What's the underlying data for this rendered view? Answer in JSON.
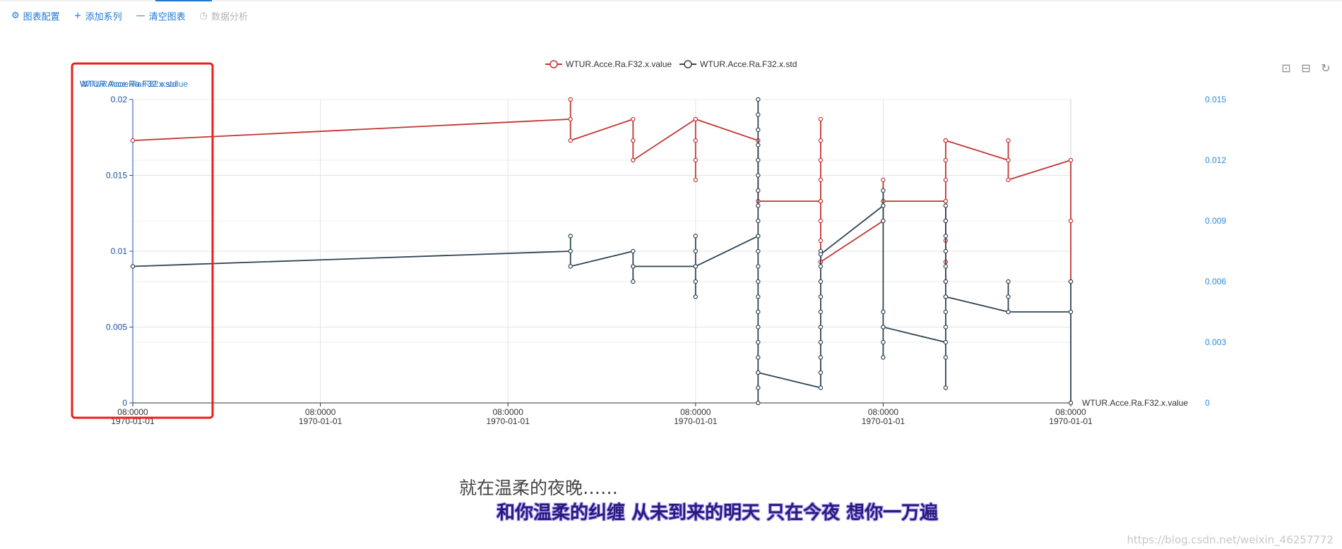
{
  "toolbar": {
    "config_label": "图表配置",
    "add_series_label": "添加系列",
    "clear_label": "清空图表",
    "analysis_label": "数据分析"
  },
  "subtitles": {
    "line1": "就在温柔的夜晚……",
    "line2": "和你温柔的纠缠  从未到来的明天  只在今夜  想你一万遍"
  },
  "watermark": "https://blog.csdn.net/weixin_46257772",
  "colors": {
    "accent": "#1f78d1",
    "value_series": "#c23531",
    "std_series": "#2f4554",
    "highlight_box": "#e8201c"
  },
  "chart_data": {
    "type": "line",
    "legend_position": "top-center",
    "grid": true,
    "x_tick_labels": [
      [
        "08:0000",
        "1970-01-01"
      ],
      [
        "08:0000",
        "1970-01-01"
      ],
      [
        "08:0000",
        "1970-01-01"
      ],
      [
        "08:0000",
        "1970-01-01"
      ],
      [
        "08:0000",
        "1970-01-01"
      ],
      [
        "08:0000",
        "1970-01-01"
      ]
    ],
    "x_range": [
      0,
      15
    ],
    "left_axis": {
      "name": "WTUR.Acce.Ra.F32.x.std",
      "overlapping_name": "WTUR.Acce.Ra.F32.x.value",
      "range": [
        0,
        0.02
      ],
      "ticks": [
        "0",
        "0.005",
        "0.01",
        "0.015",
        "0.02"
      ]
    },
    "right_axis": {
      "range": [
        0,
        0.015
      ],
      "ticks": [
        "0",
        "0.003",
        "0.006",
        "0.009",
        "0.012",
        "0.015"
      ]
    },
    "x_axis_name": "WTUR.Acce.Ra.F32.x.value",
    "series": [
      {
        "name": "WTUR.Acce.Ra.F32.x.value",
        "axis": "left",
        "points": [
          [
            0,
            0.0173
          ],
          [
            7.0,
            0.0187
          ],
          [
            7.0,
            0.02
          ],
          [
            7.0,
            0.0173
          ],
          [
            8.0,
            0.0187
          ],
          [
            8.0,
            0.0173
          ],
          [
            8.0,
            0.016
          ],
          [
            9.0,
            0.0187
          ],
          [
            9.0,
            0.0173
          ],
          [
            9.0,
            0.016
          ],
          [
            9.0,
            0.0147
          ],
          [
            9.0,
            0.0187
          ],
          [
            10.0,
            0.0173
          ],
          [
            10.0,
            0.0133
          ],
          [
            11.0,
            0.0133
          ],
          [
            11.0,
            0.0187
          ],
          [
            11.0,
            0.0173
          ],
          [
            11.0,
            0.016
          ],
          [
            11.0,
            0.0147
          ],
          [
            11.0,
            0.0133
          ],
          [
            11.0,
            0.012
          ],
          [
            11.0,
            0.0107
          ],
          [
            11.0,
            0.0093
          ],
          [
            11.0,
            0.0093
          ],
          [
            12.0,
            0.012
          ],
          [
            12.0,
            0.0133
          ],
          [
            12.0,
            0.0147
          ],
          [
            12.0,
            0.0133
          ],
          [
            13.0,
            0.0133
          ],
          [
            13.0,
            0.0173
          ],
          [
            13.0,
            0.016
          ],
          [
            13.0,
            0.0147
          ],
          [
            13.0,
            0.0133
          ],
          [
            13.0,
            0.012
          ],
          [
            13.0,
            0.0107
          ],
          [
            13.0,
            0.0093
          ],
          [
            13.0,
            0.008
          ],
          [
            13.0,
            0.0173
          ],
          [
            14.0,
            0.016
          ],
          [
            14.0,
            0.0173
          ],
          [
            14.0,
            0.0147
          ],
          [
            15.0,
            0.016
          ],
          [
            15.0,
            0.012
          ],
          [
            15.0,
            0.008
          ]
        ]
      },
      {
        "name": "WTUR.Acce.Ra.F32.x.std",
        "axis": "left",
        "points": [
          [
            0,
            0.009
          ],
          [
            7.0,
            0.01
          ],
          [
            7.0,
            0.011
          ],
          [
            7.0,
            0.009
          ],
          [
            8.0,
            0.01
          ],
          [
            8.0,
            0.009
          ],
          [
            8.0,
            0.008
          ],
          [
            8.0,
            0.009
          ],
          [
            9.0,
            0.009
          ],
          [
            9.0,
            0.011
          ],
          [
            9.0,
            0.01
          ],
          [
            9.0,
            0.008
          ],
          [
            9.0,
            0.007
          ],
          [
            9.0,
            0.009
          ],
          [
            10.0,
            0.011
          ],
          [
            10.0,
            0.02
          ],
          [
            10.0,
            0.019
          ],
          [
            10.0,
            0.018
          ],
          [
            10.0,
            0.017
          ],
          [
            10.0,
            0.016
          ],
          [
            10.0,
            0.015
          ],
          [
            10.0,
            0.014
          ],
          [
            10.0,
            0.013
          ],
          [
            10.0,
            0.012
          ],
          [
            10.0,
            0.011
          ],
          [
            10.0,
            0.01
          ],
          [
            10.0,
            0.009
          ],
          [
            10.0,
            0.008
          ],
          [
            10.0,
            0.007
          ],
          [
            10.0,
            0.006
          ],
          [
            10.0,
            0.005
          ],
          [
            10.0,
            0.004
          ],
          [
            10.0,
            0.003
          ],
          [
            10.0,
            0.002
          ],
          [
            10.0,
            0.001
          ],
          [
            10.0,
            0.0
          ],
          [
            10.0,
            0.002
          ],
          [
            11.0,
            0.001
          ],
          [
            11.0,
            0.002
          ],
          [
            11.0,
            0.003
          ],
          [
            11.0,
            0.004
          ],
          [
            11.0,
            0.005
          ],
          [
            11.0,
            0.006
          ],
          [
            11.0,
            0.007
          ],
          [
            11.0,
            0.008
          ],
          [
            11.0,
            0.009
          ],
          [
            11.0,
            0.01
          ],
          [
            11.0,
            0.0098
          ],
          [
            12.0,
            0.013
          ],
          [
            12.0,
            0.014
          ],
          [
            12.0,
            0.012
          ],
          [
            12.0,
            0.006
          ],
          [
            12.0,
            0.005
          ],
          [
            12.0,
            0.004
          ],
          [
            12.0,
            0.003
          ],
          [
            12.0,
            0.005
          ],
          [
            13.0,
            0.004
          ],
          [
            13.0,
            0.001
          ],
          [
            13.0,
            0.003
          ],
          [
            13.0,
            0.005
          ],
          [
            13.0,
            0.006
          ],
          [
            13.0,
            0.007
          ],
          [
            13.0,
            0.008
          ],
          [
            13.0,
            0.009
          ],
          [
            13.0,
            0.01
          ],
          [
            13.0,
            0.011
          ],
          [
            13.0,
            0.012
          ],
          [
            13.0,
            0.013
          ],
          [
            13.0,
            0.007
          ],
          [
            14.0,
            0.006
          ],
          [
            14.0,
            0.007
          ],
          [
            14.0,
            0.008
          ],
          [
            14.0,
            0.006
          ],
          [
            15.0,
            0.006
          ],
          [
            15.0,
            0.0
          ],
          [
            15.0,
            0.008
          ]
        ]
      }
    ]
  },
  "tools": [
    {
      "name": "zoom-select-icon",
      "glyph": "⊡"
    },
    {
      "name": "zoom-reset-icon",
      "glyph": "⊟"
    },
    {
      "name": "restore-icon",
      "glyph": "↻"
    }
  ]
}
